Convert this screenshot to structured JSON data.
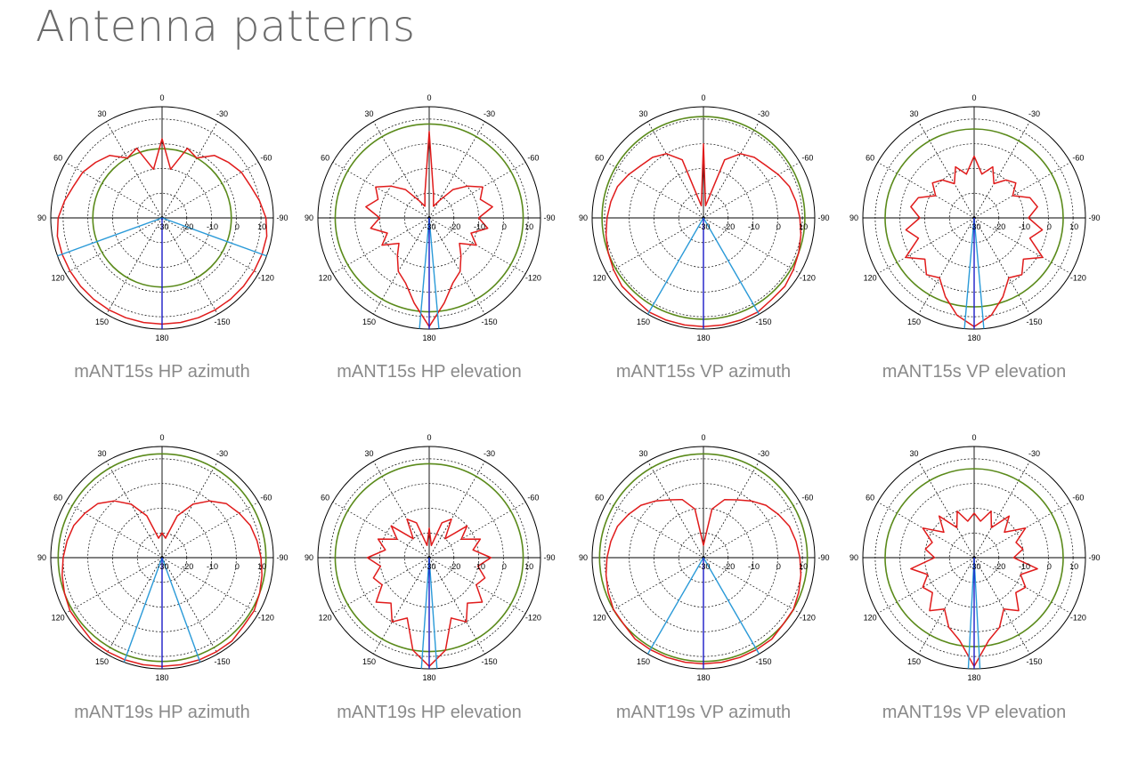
{
  "page": {
    "title": "Antenna patterns"
  },
  "style": {
    "pattern_color": "#e01b1b",
    "reference_color": "#5a8a1a",
    "beam_color": "#2a9ad8",
    "axis_color": "#1a1ac8"
  },
  "axes": {
    "angle_labels": [
      "0",
      "30",
      "-30",
      "60",
      "-60",
      "90",
      "-90",
      "120",
      "-120",
      "150",
      "-150",
      "180"
    ],
    "radial_labels": [
      "-30",
      "-20",
      "-10",
      "0",
      "10"
    ]
  },
  "chart_data": [
    {
      "type": "polar",
      "title": "mANT15s HP azimuth",
      "rlim": [
        -30,
        15
      ],
      "reference_circle_db": -2,
      "beamwidth_deg": 140,
      "pattern": {
        "theta": [
          0,
          10,
          20,
          30,
          40,
          50,
          60,
          70,
          80,
          90,
          100,
          110,
          120,
          130,
          140,
          150,
          160,
          170,
          180
        ],
        "r": [
          2,
          -10,
          0,
          -2,
          3,
          5,
          7,
          8,
          10,
          12,
          13,
          13,
          13,
          13,
          13,
          13,
          13,
          13,
          13
        ]
      }
    },
    {
      "type": "polar",
      "title": "mANT15s HP elevation",
      "rlim": [
        -30,
        15
      ],
      "reference_circle_db": 8,
      "beamwidth_deg": 10,
      "pattern": {
        "theta": [
          0,
          10,
          20,
          30,
          40,
          50,
          60,
          70,
          80,
          90,
          100,
          110,
          120,
          130,
          140,
          150,
          160,
          170,
          180
        ],
        "r": [
          5,
          -20,
          -25,
          -22,
          -15,
          -10,
          -5,
          -8,
          -4,
          -10,
          -6,
          -12,
          -8,
          -14,
          -10,
          -5,
          -2,
          5,
          14
        ]
      }
    },
    {
      "type": "polar",
      "title": "mANT15s VP azimuth",
      "rlim": [
        -30,
        15
      ],
      "reference_circle_db": 11,
      "beamwidth_deg": 60,
      "pattern": {
        "theta": [
          0,
          10,
          20,
          30,
          40,
          50,
          60,
          70,
          80,
          90,
          100,
          110,
          120,
          130,
          140,
          150,
          160,
          170,
          180
        ],
        "r": [
          0,
          -25,
          -5,
          0,
          2,
          3,
          5,
          7,
          8,
          9,
          10,
          11,
          12,
          13,
          13,
          14,
          14,
          14,
          14
        ]
      }
    },
    {
      "type": "polar",
      "title": "mANT15s VP elevation",
      "rlim": [
        -30,
        15
      ],
      "reference_circle_db": 6,
      "beamwidth_deg": 10,
      "pattern": {
        "theta": [
          0,
          10,
          20,
          30,
          40,
          50,
          60,
          70,
          80,
          90,
          100,
          110,
          120,
          130,
          140,
          150,
          160,
          170,
          180
        ],
        "r": [
          -5,
          -12,
          -8,
          -14,
          -10,
          -8,
          -12,
          -6,
          -4,
          -8,
          -2,
          -6,
          2,
          -4,
          0,
          -2,
          4,
          10,
          14
        ]
      }
    },
    {
      "type": "polar",
      "title": "mANT19s HP azimuth",
      "rlim": [
        -30,
        15
      ],
      "reference_circle_db": 12,
      "beamwidth_deg": 40,
      "pattern": {
        "theta": [
          0,
          10,
          20,
          30,
          40,
          50,
          60,
          70,
          80,
          90,
          100,
          110,
          120,
          130,
          140,
          150,
          160,
          170,
          180
        ],
        "r": [
          -20,
          -22,
          -12,
          -5,
          0,
          4,
          6,
          8,
          9,
          10,
          11,
          12,
          13,
          13,
          14,
          14,
          14,
          14,
          14
        ]
      }
    },
    {
      "type": "polar",
      "title": "mANT19s HP elevation",
      "rlim": [
        -30,
        15
      ],
      "reference_circle_db": 8,
      "beamwidth_deg": 8,
      "pattern": {
        "theta": [
          0,
          10,
          20,
          30,
          40,
          50,
          60,
          70,
          80,
          90,
          100,
          110,
          120,
          130,
          140,
          150,
          160,
          170,
          180
        ],
        "r": [
          -18,
          -25,
          -15,
          -12,
          -20,
          -10,
          -15,
          -8,
          -12,
          -5,
          -10,
          -6,
          -8,
          -2,
          -6,
          0,
          -4,
          8,
          14
        ]
      }
    },
    {
      "type": "polar",
      "title": "mANT19s VP azimuth",
      "rlim": [
        -30,
        15
      ],
      "reference_circle_db": 12,
      "beamwidth_deg": 60,
      "pattern": {
        "theta": [
          0,
          10,
          20,
          30,
          40,
          50,
          60,
          70,
          80,
          90,
          100,
          110,
          120,
          130,
          140,
          150,
          160,
          170,
          180
        ],
        "r": [
          -25,
          -10,
          -5,
          -3,
          0,
          3,
          5,
          7,
          8,
          9,
          10,
          11,
          12,
          12,
          13,
          13,
          13,
          13,
          13
        ]
      }
    },
    {
      "type": "polar",
      "title": "mANT19s VP elevation",
      "rlim": [
        -30,
        15
      ],
      "reference_circle_db": 6,
      "beamwidth_deg": 6,
      "pattern": {
        "theta": [
          0,
          10,
          20,
          30,
          40,
          50,
          60,
          70,
          80,
          90,
          100,
          110,
          120,
          130,
          140,
          150,
          160,
          170,
          180
        ],
        "r": [
          -12,
          -15,
          -10,
          -16,
          -8,
          -14,
          -6,
          -12,
          -10,
          -14,
          -4,
          -10,
          -6,
          -8,
          -2,
          -6,
          0,
          4,
          14
        ]
      }
    }
  ]
}
